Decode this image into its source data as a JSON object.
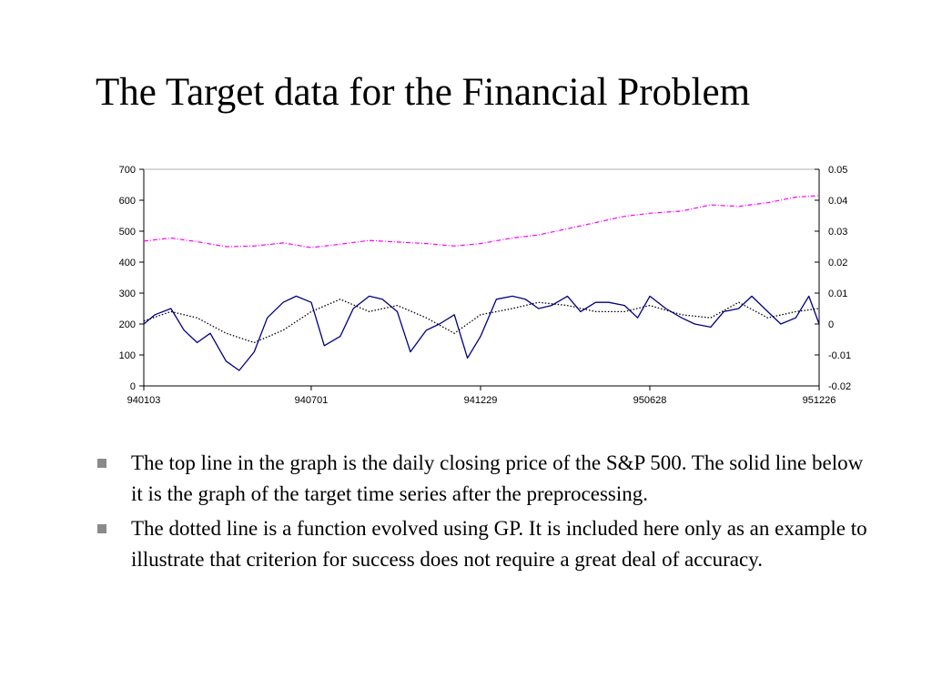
{
  "slide": {
    "title": "The Target data for the Financial Problem"
  },
  "bullets": [
    "The top line in the graph is the daily closing price of  the S&P 500. The solid line below it is the graph of  the target time series after the preprocessing.",
    "The dotted line is a function evolved using GP. It is included here only as an example to illustrate that criterion for success does not require a great deal of  accuracy."
  ],
  "chart_data": {
    "type": "line",
    "x_ticks": [
      "940103",
      "940701",
      "941229",
      "950628",
      "951226"
    ],
    "y_left": {
      "ylim": [
        0,
        700
      ],
      "ticks": [
        "0",
        "100",
        "200",
        "300",
        "400",
        "500",
        "600",
        "700"
      ]
    },
    "y_right": {
      "ylim": [
        -0.02,
        0.05
      ],
      "ticks": [
        "-0.02",
        "-0.01",
        "0",
        "0.01",
        "0.02",
        "0.03",
        "0.04",
        "0.05"
      ]
    },
    "grid": false,
    "legend": "none",
    "colors": {
      "sp500": "#ff00ff",
      "target": "#000080",
      "gp": "#000000"
    },
    "series": [
      {
        "axis": "left",
        "style": "dash-dot",
        "x": [
          "940103",
          "940201",
          "940301",
          "940401",
          "940501",
          "940601",
          "940701",
          "940801",
          "940901",
          "941001",
          "941101",
          "941201",
          "941229",
          "950201",
          "950301",
          "950401",
          "950501",
          "950601",
          "950628",
          "950801",
          "950901",
          "951001",
          "951101",
          "951201",
          "951226"
        ],
        "values": [
          468,
          478,
          466,
          450,
          452,
          462,
          447,
          458,
          470,
          465,
          460,
          452,
          460,
          478,
          488,
          508,
          528,
          548,
          558,
          565,
          585,
          580,
          592,
          610,
          615
        ]
      },
      {
        "axis": "right",
        "style": "solid",
        "x": [
          "940103",
          "940115",
          "940201",
          "940215",
          "940301",
          "940315",
          "940401",
          "940415",
          "940501",
          "940515",
          "940601",
          "940615",
          "940701",
          "940715",
          "940801",
          "940815",
          "940901",
          "940915",
          "941001",
          "941015",
          "941101",
          "941115",
          "941201",
          "941215",
          "941229",
          "950115",
          "950201",
          "950215",
          "950301",
          "950315",
          "950401",
          "950415",
          "950501",
          "950515",
          "950601",
          "950615",
          "950628",
          "950715",
          "950801",
          "950815",
          "950901",
          "950915",
          "951001",
          "951015",
          "951101",
          "951115",
          "951201",
          "951215",
          "951226"
        ],
        "values": [
          0.0,
          0.003,
          0.005,
          -0.002,
          -0.006,
          -0.003,
          -0.012,
          -0.015,
          -0.009,
          0.002,
          0.007,
          0.009,
          0.007,
          -0.007,
          -0.004,
          0.005,
          0.009,
          0.008,
          0.004,
          -0.009,
          -0.002,
          0.0,
          0.003,
          -0.011,
          -0.004,
          0.008,
          0.009,
          0.008,
          0.005,
          0.006,
          0.009,
          0.004,
          0.007,
          0.007,
          0.006,
          0.002,
          0.009,
          0.005,
          0.002,
          0.0,
          -0.001,
          0.004,
          0.005,
          0.009,
          0.004,
          0.0,
          0.002,
          0.009,
          0.0
        ]
      },
      {
        "axis": "right",
        "style": "dotted",
        "x": [
          "940103",
          "940201",
          "940301",
          "940401",
          "940501",
          "940601",
          "940701",
          "940801",
          "940901",
          "941001",
          "941101",
          "941201",
          "941229",
          "950201",
          "950301",
          "950401",
          "950501",
          "950601",
          "950628",
          "950801",
          "950901",
          "951001",
          "951101",
          "951201",
          "951226"
        ],
        "values": [
          0.001,
          0.004,
          0.002,
          -0.003,
          -0.006,
          -0.002,
          0.004,
          0.008,
          0.004,
          0.006,
          0.002,
          -0.003,
          0.003,
          0.005,
          0.007,
          0.006,
          0.004,
          0.004,
          0.006,
          0.003,
          0.002,
          0.007,
          0.002,
          0.004,
          0.005
        ]
      }
    ]
  }
}
